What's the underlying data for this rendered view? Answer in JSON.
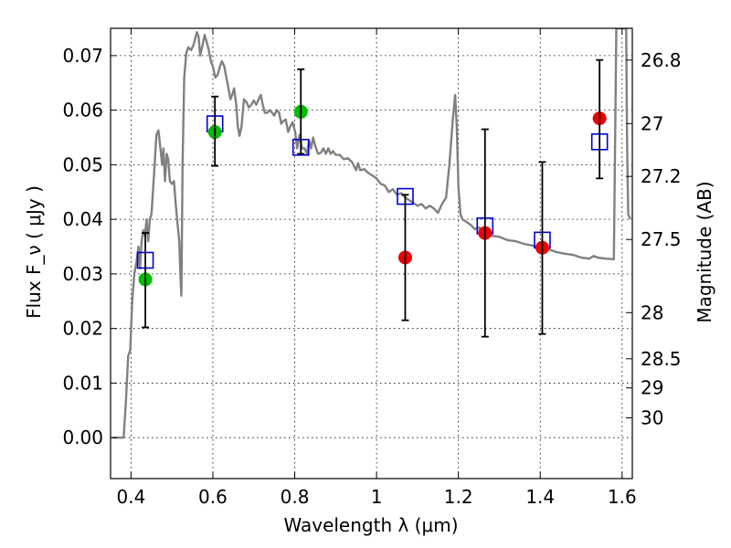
{
  "chart_data": {
    "type": "scatter",
    "xlabel": "Wavelength  λ (μm)",
    "ylabel": "Flux  F_ν  ( μJy )",
    "y2label": "Magnitude (AB)",
    "xlim": [
      0.35,
      1.625
    ],
    "ylim": [
      -0.0075,
      0.075
    ],
    "grid": true,
    "grid_style": "dotted",
    "x_ticks": [
      0.4,
      0.6,
      0.8,
      1.0,
      1.2,
      1.4,
      1.6
    ],
    "x_tick_labels": [
      "0.4",
      "0.6",
      "0.8",
      "1",
      "1.2",
      "1.4",
      "1.6"
    ],
    "y_ticks": [
      0.0,
      0.01,
      0.02,
      0.03,
      0.04,
      0.05,
      0.06,
      0.07
    ],
    "y_tick_labels": [
      "0.00",
      "0.01",
      "0.02",
      "0.03",
      "0.04",
      "0.05",
      "0.06",
      "0.07"
    ],
    "y2_ticks": [
      {
        "mag": 26.8,
        "label": "26.8"
      },
      {
        "mag": 27.0,
        "label": "27"
      },
      {
        "mag": 27.2,
        "label": "27.2"
      },
      {
        "mag": 27.5,
        "label": "27.5"
      },
      {
        "mag": 28.0,
        "label": "28"
      },
      {
        "mag": 28.5,
        "label": "28.5"
      },
      {
        "mag": 29.0,
        "label": "29"
      },
      {
        "mag": 30.0,
        "label": "30"
      }
    ],
    "series": [
      {
        "kind": "line",
        "color": "#808080",
        "points": [
          [
            0.355,
            0.0
          ],
          [
            0.382,
            0.0
          ],
          [
            0.387,
            0.006
          ],
          [
            0.393,
            0.015
          ],
          [
            0.398,
            0.016
          ],
          [
            0.403,
            0.025
          ],
          [
            0.408,
            0.03
          ],
          [
            0.413,
            0.032
          ],
          [
            0.418,
            0.035
          ],
          [
            0.422,
            0.031
          ],
          [
            0.426,
            0.036
          ],
          [
            0.43,
            0.038
          ],
          [
            0.434,
            0.037
          ],
          [
            0.438,
            0.04
          ],
          [
            0.442,
            0.036
          ],
          [
            0.446,
            0.04
          ],
          [
            0.45,
            0.041
          ],
          [
            0.456,
            0.048
          ],
          [
            0.462,
            0.0555
          ],
          [
            0.467,
            0.0563
          ],
          [
            0.472,
            0.053
          ],
          [
            0.476,
            0.05
          ],
          [
            0.479,
            0.053
          ],
          [
            0.483,
            0.047
          ],
          [
            0.487,
            0.052
          ],
          [
            0.491,
            0.051
          ],
          [
            0.495,
            0.047
          ],
          [
            0.5,
            0.0465
          ],
          [
            0.505,
            0.047
          ],
          [
            0.509,
            0.043
          ],
          [
            0.514,
            0.039
          ],
          [
            0.518,
            0.036
          ],
          [
            0.521,
            0.029
          ],
          [
            0.523,
            0.026
          ],
          [
            0.526,
            0.05
          ],
          [
            0.53,
            0.066
          ],
          [
            0.535,
            0.0705
          ],
          [
            0.54,
            0.0715
          ],
          [
            0.547,
            0.071
          ],
          [
            0.553,
            0.072
          ],
          [
            0.557,
            0.0732
          ],
          [
            0.561,
            0.0743
          ],
          [
            0.565,
            0.0735
          ],
          [
            0.569,
            0.07
          ],
          [
            0.575,
            0.072
          ],
          [
            0.58,
            0.0738
          ],
          [
            0.585,
            0.0725
          ],
          [
            0.59,
            0.071
          ],
          [
            0.595,
            0.069
          ],
          [
            0.6,
            0.068
          ],
          [
            0.606,
            0.066
          ],
          [
            0.612,
            0.0665
          ],
          [
            0.617,
            0.068
          ],
          [
            0.622,
            0.069
          ],
          [
            0.628,
            0.068
          ],
          [
            0.633,
            0.066
          ],
          [
            0.638,
            0.064
          ],
          [
            0.643,
            0.062
          ],
          [
            0.648,
            0.063
          ],
          [
            0.652,
            0.064
          ],
          [
            0.657,
            0.061
          ],
          [
            0.661,
            0.057
          ],
          [
            0.665,
            0.0553
          ],
          [
            0.67,
            0.057
          ],
          [
            0.676,
            0.062
          ],
          [
            0.682,
            0.0615
          ],
          [
            0.688,
            0.0605
          ],
          [
            0.694,
            0.061
          ],
          [
            0.7,
            0.0618
          ],
          [
            0.706,
            0.061
          ],
          [
            0.712,
            0.062
          ],
          [
            0.717,
            0.0628
          ],
          [
            0.722,
            0.061
          ],
          [
            0.727,
            0.0595
          ],
          [
            0.733,
            0.0595
          ],
          [
            0.739,
            0.06
          ],
          [
            0.745,
            0.0595
          ],
          [
            0.75,
            0.059
          ],
          [
            0.756,
            0.06
          ],
          [
            0.762,
            0.0595
          ],
          [
            0.767,
            0.0575
          ],
          [
            0.772,
            0.058
          ],
          [
            0.778,
            0.0583
          ],
          [
            0.784,
            0.056
          ],
          [
            0.789,
            0.057
          ],
          [
            0.795,
            0.0578
          ],
          [
            0.801,
            0.056
          ],
          [
            0.806,
            0.053
          ],
          [
            0.812,
            0.0555
          ],
          [
            0.818,
            0.053
          ],
          [
            0.824,
            0.053
          ],
          [
            0.83,
            0.052
          ],
          [
            0.835,
            0.0545
          ],
          [
            0.84,
            0.053
          ],
          [
            0.845,
            0.055
          ],
          [
            0.85,
            0.0535
          ],
          [
            0.857,
            0.052
          ],
          [
            0.864,
            0.0522
          ],
          [
            0.87,
            0.053
          ],
          [
            0.876,
            0.052
          ],
          [
            0.882,
            0.053
          ],
          [
            0.888,
            0.052
          ],
          [
            0.894,
            0.0525
          ],
          [
            0.9,
            0.0518
          ],
          [
            0.91,
            0.0518
          ],
          [
            0.92,
            0.051
          ],
          [
            0.93,
            0.0512
          ],
          [
            0.94,
            0.0505
          ],
          [
            0.95,
            0.049
          ],
          [
            0.955,
            0.0503
          ],
          [
            0.96,
            0.049
          ],
          [
            0.97,
            0.0492
          ],
          [
            0.98,
            0.0485
          ],
          [
            0.99,
            0.048
          ],
          [
            1.0,
            0.0475
          ],
          [
            1.01,
            0.0465
          ],
          [
            1.02,
            0.0462
          ],
          [
            1.03,
            0.045
          ],
          [
            1.04,
            0.0455
          ],
          [
            1.05,
            0.0445
          ],
          [
            1.06,
            0.0448
          ],
          [
            1.07,
            0.044
          ],
          [
            1.08,
            0.0435
          ],
          [
            1.09,
            0.043
          ],
          [
            1.1,
            0.0425
          ],
          [
            1.11,
            0.0428
          ],
          [
            1.12,
            0.042
          ],
          [
            1.13,
            0.0425
          ],
          [
            1.14,
            0.042
          ],
          [
            1.15,
            0.0412
          ],
          [
            1.16,
            0.0428
          ],
          [
            1.17,
            0.044
          ],
          [
            1.178,
            0.05
          ],
          [
            1.186,
            0.058
          ],
          [
            1.192,
            0.0628
          ],
          [
            1.196,
            0.057
          ],
          [
            1.2,
            0.046
          ],
          [
            1.205,
            0.041
          ],
          [
            1.21,
            0.04
          ],
          [
            1.22,
            0.0395
          ],
          [
            1.23,
            0.039
          ],
          [
            1.24,
            0.0382
          ],
          [
            1.25,
            0.0385
          ],
          [
            1.26,
            0.0378
          ],
          [
            1.28,
            0.037
          ],
          [
            1.3,
            0.0368
          ],
          [
            1.32,
            0.0362
          ],
          [
            1.34,
            0.036
          ],
          [
            1.36,
            0.0355
          ],
          [
            1.38,
            0.0352
          ],
          [
            1.4,
            0.0348
          ],
          [
            1.42,
            0.0345
          ],
          [
            1.44,
            0.034
          ],
          [
            1.46,
            0.0337
          ],
          [
            1.48,
            0.0335
          ],
          [
            1.5,
            0.033
          ],
          [
            1.52,
            0.0328
          ],
          [
            1.53,
            0.0333
          ],
          [
            1.54,
            0.033
          ],
          [
            1.56,
            0.0328
          ],
          [
            1.58,
            0.0327
          ],
          [
            1.586,
            0.075
          ],
          [
            1.61,
            0.075
          ],
          [
            1.612,
            0.055
          ],
          [
            1.615,
            0.041
          ],
          [
            1.62,
            0.04
          ]
        ]
      },
      {
        "kind": "open-square",
        "color": "#0000dd",
        "x": [
          0.435,
          0.605,
          0.815,
          1.07,
          1.265,
          1.405,
          1.545
        ],
        "y": [
          0.0325,
          0.0575,
          0.0532,
          0.0442,
          0.0388,
          0.0362,
          0.0542
        ]
      },
      {
        "kind": "filled-circle",
        "color": "#00bb00",
        "x": [
          0.435,
          0.605,
          0.815
        ],
        "y": [
          0.029,
          0.056,
          0.0597
        ]
      },
      {
        "kind": "filled-circle",
        "color": "#ee0000",
        "x": [
          1.07,
          1.265,
          1.405,
          1.545
        ],
        "y": [
          0.033,
          0.0375,
          0.0348,
          0.0585
        ]
      },
      {
        "kind": "errorbar",
        "color": "#000000",
        "x": [
          0.435,
          0.605,
          0.815,
          1.07,
          1.265,
          1.405,
          1.545
        ],
        "low": [
          0.0202,
          0.0498,
          0.052,
          0.0215,
          0.0185,
          0.019,
          0.0475
        ],
        "high": [
          0.0375,
          0.0625,
          0.0675,
          0.0445,
          0.0565,
          0.0505,
          0.0692
        ]
      }
    ]
  }
}
